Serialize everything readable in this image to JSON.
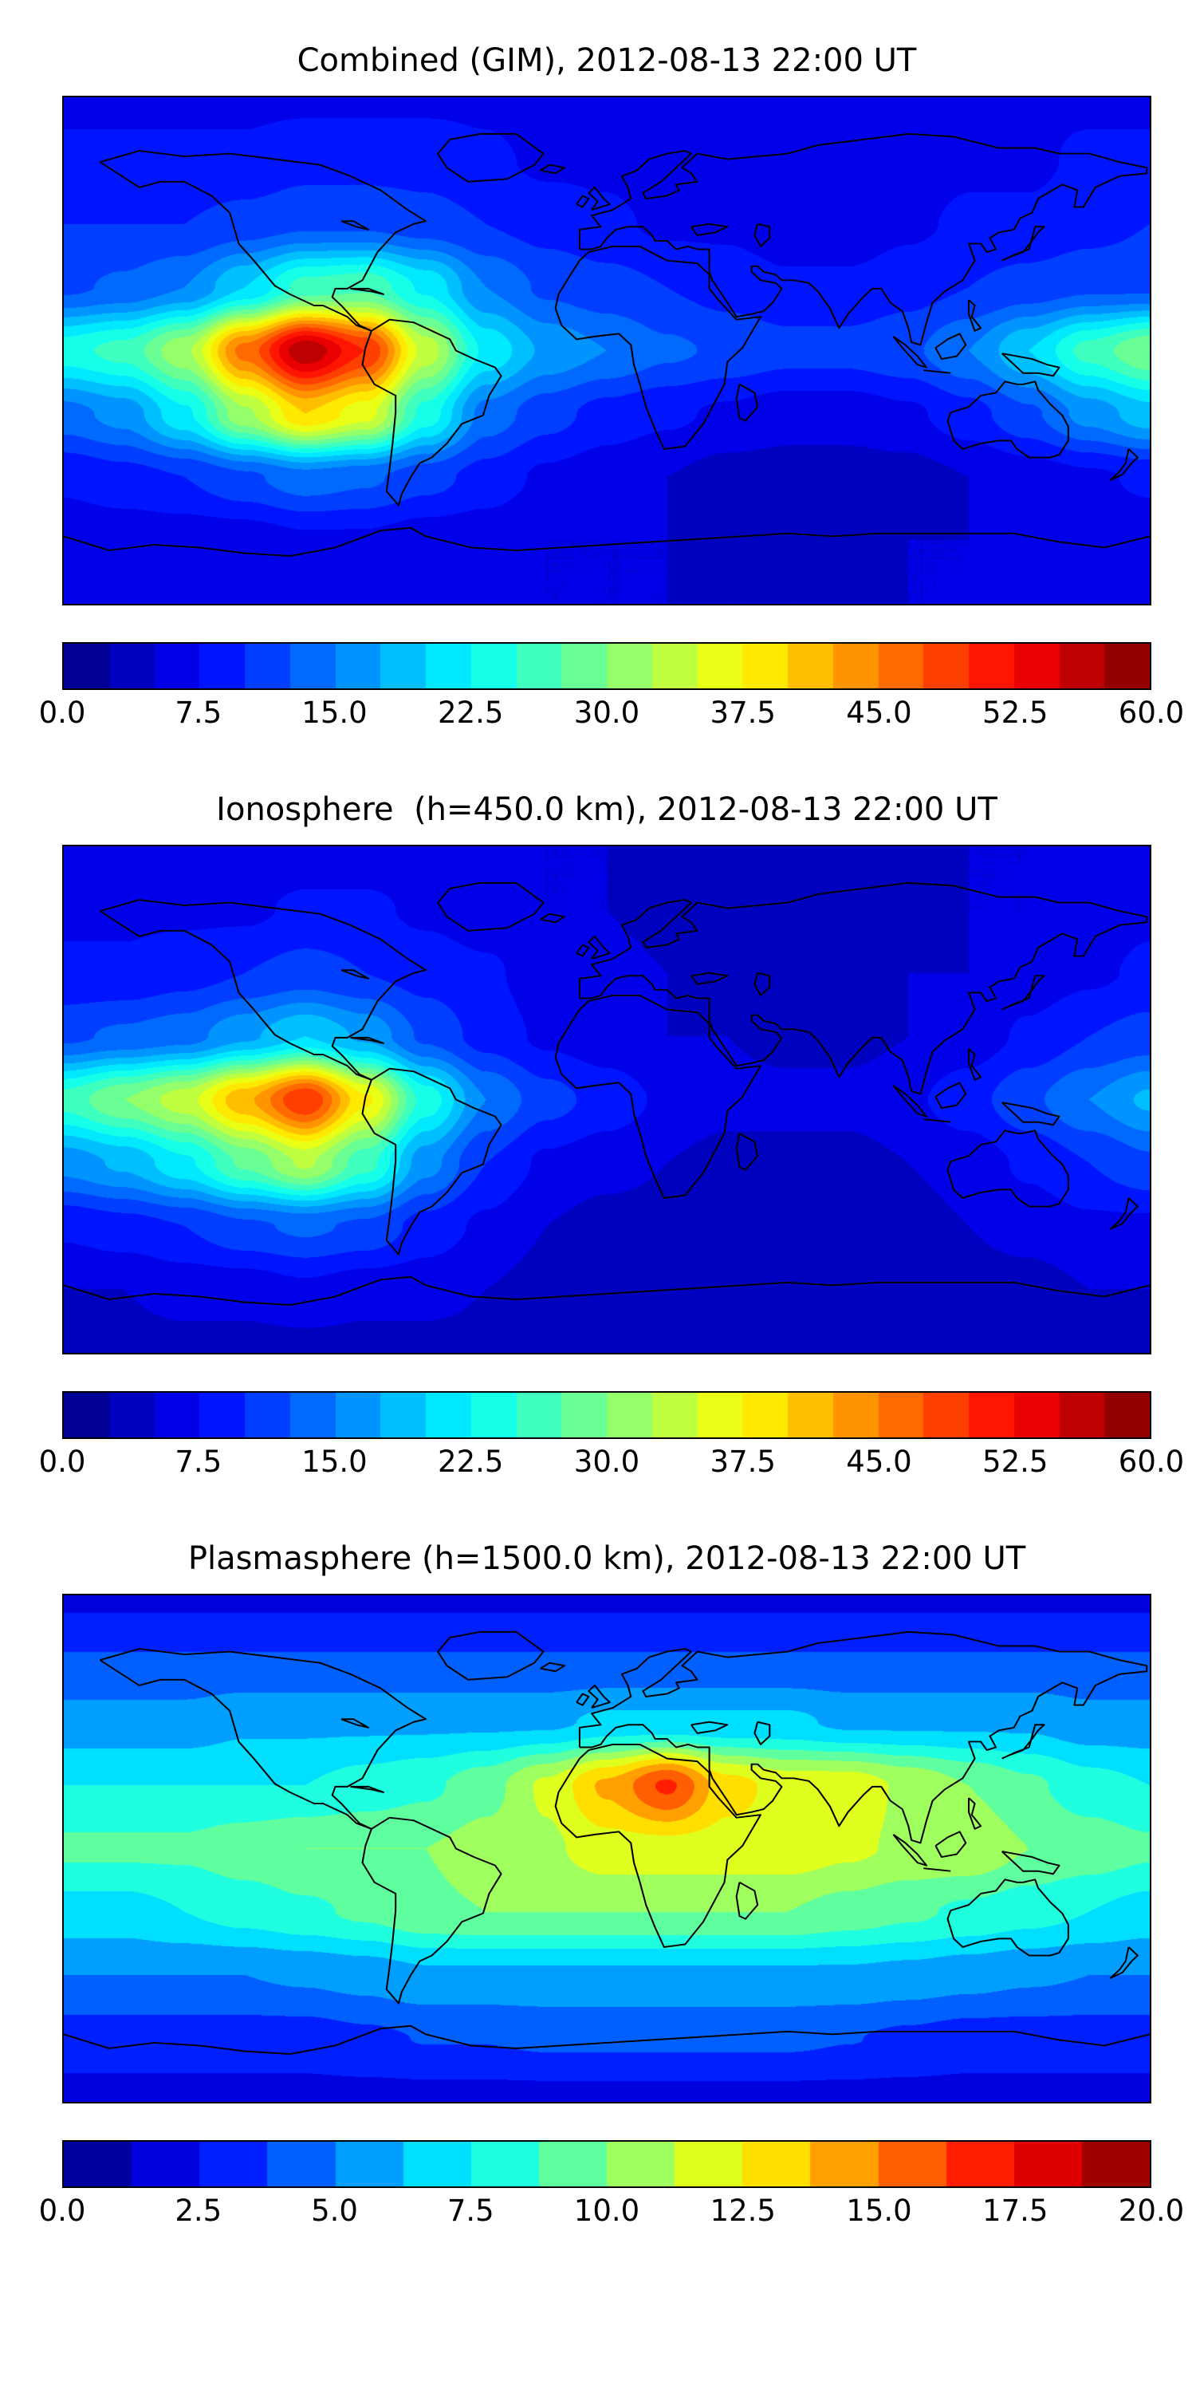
{
  "figure": {
    "background": "#ffffff",
    "text_color": "#000000",
    "panels": [
      {
        "title": "Combined (GIM), 2012-08-13 22:00 UT",
        "colorbar": {
          "ticks": [
            "0.0",
            "7.5",
            "15.0",
            "22.5",
            "30.0",
            "37.5",
            "45.0",
            "52.5",
            "60.0"
          ]
        }
      },
      {
        "title": "Ionosphere  (h=450.0 km), 2012-08-13 22:00 UT",
        "colorbar": {
          "ticks": [
            "0.0",
            "7.5",
            "15.0",
            "22.5",
            "30.0",
            "37.5",
            "45.0",
            "52.5",
            "60.0"
          ]
        }
      },
      {
        "title": "Plasmasphere (h=1500.0 km), 2012-08-13 22:00 UT",
        "colorbar": {
          "ticks": [
            "0.0",
            "2.5",
            "5.0",
            "7.5",
            "10.0",
            "12.5",
            "15.0",
            "17.5",
            "20.0"
          ]
        }
      }
    ]
  },
  "chart_data": [
    {
      "type": "heatmap",
      "title": "Combined (GIM), 2012-08-13 22:00 UT",
      "colormap": "jet",
      "projection": "equirectangular",
      "vmin": 0,
      "vmax": 60,
      "level_step": 2.5,
      "colorbar_ticks": [
        0.0,
        7.5,
        15.0,
        22.5,
        30.0,
        37.5,
        45.0,
        52.5,
        60.0
      ],
      "lon": [
        -180,
        -160,
        -140,
        -120,
        -100,
        -80,
        -60,
        -40,
        -20,
        0,
        20,
        40,
        60,
        80,
        100,
        120,
        140,
        160,
        180
      ],
      "lat": [
        90,
        67.5,
        45,
        22.5,
        0,
        -22.5,
        -45,
        -67.5,
        -90
      ],
      "values": [
        [
          7,
          7,
          7,
          7,
          7,
          7,
          7,
          7,
          6,
          6,
          6,
          6,
          6,
          6,
          6,
          6,
          7,
          7,
          7
        ],
        [
          8,
          8,
          8,
          8,
          9,
          9,
          9,
          8,
          7,
          7,
          6,
          6,
          6,
          6,
          6,
          7,
          7,
          8,
          8
        ],
        [
          10,
          10,
          10,
          11,
          12,
          12,
          11,
          10,
          9,
          8,
          7,
          7,
          6,
          6,
          7,
          8,
          8,
          9,
          10
        ],
        [
          12,
          13,
          15,
          20,
          26,
          27,
          22,
          15,
          12,
          11,
          10,
          9,
          8,
          8,
          9,
          10,
          11,
          12,
          12
        ],
        [
          24,
          26,
          32,
          46,
          57,
          50,
          34,
          22,
          17,
          15,
          13,
          12,
          11,
          11,
          12,
          15,
          20,
          26,
          30
        ],
        [
          14,
          16,
          22,
          32,
          40,
          36,
          24,
          14,
          11,
          9,
          8,
          7,
          6,
          6,
          7,
          9,
          12,
          16,
          19
        ],
        [
          8,
          9,
          10,
          12,
          14,
          13,
          11,
          9,
          7,
          6,
          5,
          4,
          4,
          4,
          4,
          5,
          6,
          7,
          8
        ],
        [
          6,
          6,
          6,
          6,
          7,
          7,
          6,
          6,
          5,
          5,
          5,
          4,
          4,
          4,
          5,
          5,
          6,
          6,
          6
        ],
        [
          5,
          5,
          5,
          5,
          5,
          5,
          5,
          5,
          5,
          5,
          5,
          5,
          5,
          5,
          5,
          5,
          5,
          5,
          5
        ]
      ]
    },
    {
      "type": "heatmap",
      "title": "Ionosphere  (h=450.0 km), 2012-08-13 22:00 UT",
      "colormap": "jet",
      "projection": "equirectangular",
      "vmin": 0,
      "vmax": 60,
      "level_step": 2.5,
      "colorbar_ticks": [
        0.0,
        7.5,
        15.0,
        22.5,
        30.0,
        37.5,
        45.0,
        52.5,
        60.0
      ],
      "lon": [
        -180,
        -160,
        -140,
        -120,
        -100,
        -80,
        -60,
        -40,
        -20,
        0,
        20,
        40,
        60,
        80,
        100,
        120,
        140,
        160,
        180
      ],
      "lat": [
        90,
        67.5,
        45,
        22.5,
        0,
        -22.5,
        -45,
        -67.5,
        -90
      ],
      "values": [
        [
          6,
          6,
          6,
          6,
          6,
          6,
          6,
          6,
          5,
          5,
          4,
          4,
          4,
          4,
          4,
          5,
          5,
          6,
          6
        ],
        [
          7,
          7,
          7,
          7,
          8,
          8,
          7,
          6,
          5,
          5,
          4,
          4,
          4,
          4,
          4,
          5,
          5,
          6,
          7
        ],
        [
          8,
          8,
          9,
          10,
          11,
          10,
          9,
          8,
          6,
          6,
          5,
          4,
          4,
          4,
          5,
          5,
          6,
          7,
          8
        ],
        [
          12,
          13,
          14,
          17,
          20,
          17,
          12,
          9,
          7,
          6,
          5,
          5,
          4,
          4,
          5,
          6,
          8,
          10,
          11
        ],
        [
          26,
          30,
          34,
          42,
          50,
          38,
          24,
          15,
          11,
          9,
          7,
          6,
          6,
          6,
          7,
          9,
          12,
          15,
          18
        ],
        [
          16,
          18,
          22,
          28,
          33,
          26,
          16,
          10,
          7,
          6,
          5,
          4,
          4,
          4,
          5,
          6,
          8,
          10,
          12
        ],
        [
          8,
          9,
          10,
          12,
          13,
          12,
          9,
          7,
          5,
          4,
          4,
          3,
          3,
          3,
          4,
          5,
          6,
          7,
          7
        ],
        [
          5,
          5,
          6,
          6,
          7,
          6,
          6,
          5,
          4,
          4,
          3,
          3,
          3,
          3,
          3,
          4,
          4,
          5,
          5
        ],
        [
          4,
          4,
          4,
          4,
          4,
          4,
          4,
          4,
          4,
          4,
          4,
          4,
          4,
          4,
          4,
          4,
          4,
          4,
          4
        ]
      ]
    },
    {
      "type": "heatmap",
      "title": "Plasmasphere (h=1500.0 km), 2012-08-13 22:00 UT",
      "colormap": "jet",
      "projection": "equirectangular",
      "vmin": 0,
      "vmax": 20,
      "level_step": 1.25,
      "colorbar_ticks": [
        0.0,
        2.5,
        5.0,
        7.5,
        10.0,
        12.5,
        15.0,
        17.5,
        20.0
      ],
      "lon": [
        -180,
        -160,
        -140,
        -120,
        -100,
        -80,
        -60,
        -40,
        -20,
        0,
        20,
        40,
        60,
        80,
        100,
        120,
        140,
        160,
        180
      ],
      "lat": [
        90,
        67.5,
        45,
        22.5,
        0,
        -22.5,
        -45,
        -67.5,
        -90
      ],
      "values": [
        [
          2.2,
          2.2,
          2.2,
          2.2,
          2.2,
          2.2,
          2.2,
          2.2,
          2.2,
          2.2,
          2.2,
          2.2,
          2.2,
          2.2,
          2.2,
          2.2,
          2.2,
          2.2,
          2.2
        ],
        [
          3.8,
          3.8,
          3.8,
          3.8,
          3.8,
          3.8,
          3.8,
          3.8,
          3.8,
          3.8,
          3.8,
          3.8,
          3.8,
          3.8,
          3.8,
          3.8,
          3.8,
          3.8,
          3.8
        ],
        [
          5.5,
          5.5,
          5.5,
          6,
          6,
          6,
          6,
          6,
          6,
          6.5,
          6.5,
          6.5,
          6.5,
          6,
          6,
          6,
          6,
          5.5,
          5.5
        ],
        [
          7.5,
          7.5,
          7.5,
          7.5,
          7.5,
          8,
          8.5,
          9.5,
          11.5,
          14,
          16.5,
          13,
          12,
          12,
          11,
          10,
          9,
          8,
          7.5
        ],
        [
          9,
          9,
          9,
          9.5,
          10,
          10,
          10,
          10.5,
          11,
          12,
          12,
          12,
          12,
          11.5,
          11,
          11,
          10,
          9.5,
          9
        ],
        [
          7,
          7,
          7.5,
          8,
          8.5,
          9,
          9.8,
          10,
          10,
          10,
          10,
          10,
          10,
          9.5,
          9,
          8.5,
          8,
          7.5,
          7
        ],
        [
          5,
          5,
          5,
          5,
          5.2,
          5.5,
          6,
          6,
          6,
          6,
          6,
          6,
          6,
          6,
          5.8,
          5.5,
          5.2,
          5,
          5
        ],
        [
          3.2,
          3.2,
          3.2,
          3.2,
          3.2,
          3.5,
          3.8,
          3.8,
          4,
          4,
          4,
          4,
          4,
          3.8,
          3.5,
          3.2,
          3.2,
          3.2,
          3.2
        ],
        [
          2,
          2,
          2,
          2,
          2,
          2,
          2,
          2,
          2,
          2,
          2,
          2,
          2,
          2,
          2,
          2,
          2,
          2,
          2
        ]
      ]
    }
  ]
}
